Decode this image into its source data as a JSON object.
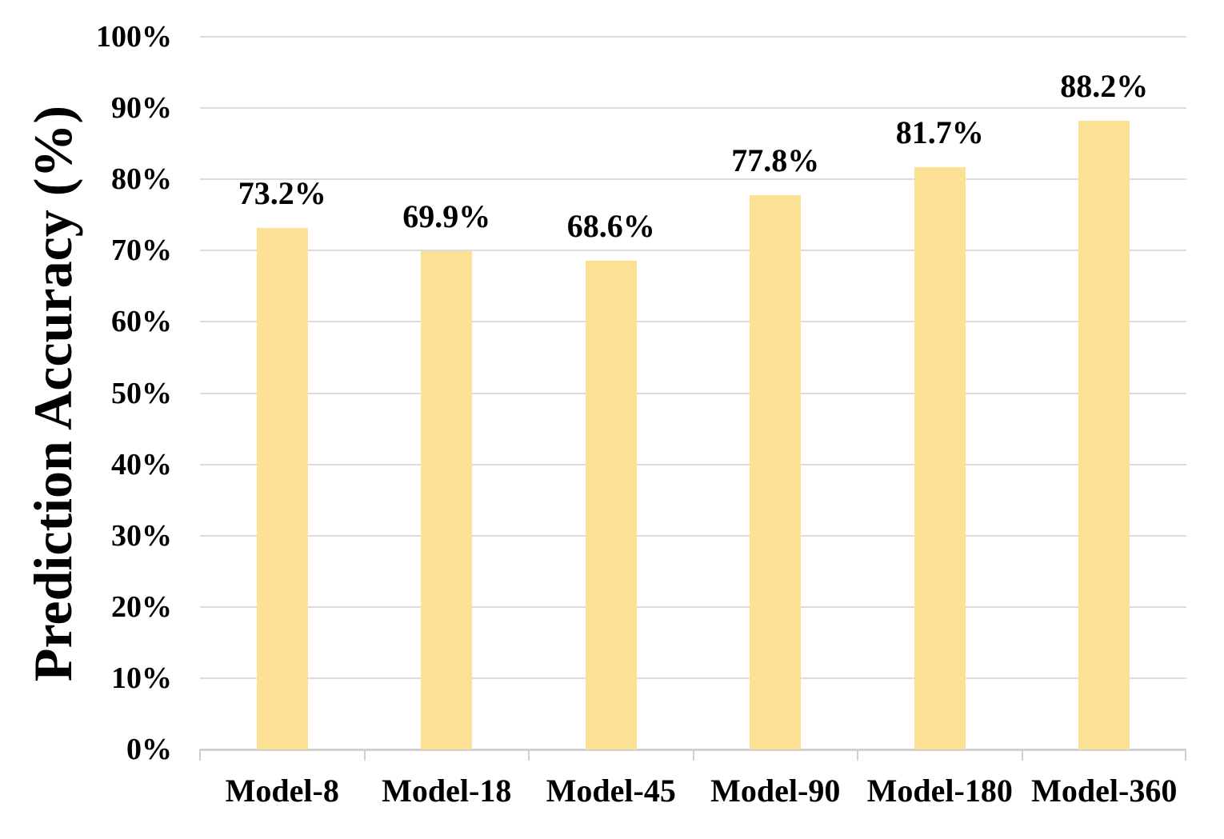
{
  "chart_data": {
    "type": "bar",
    "title": "",
    "xlabel": "",
    "ylabel": "Prediction Accuracy (%)",
    "categories": [
      "Model-8",
      "Model-18",
      "Model-45",
      "Model-90",
      "Model-180",
      "Model-360"
    ],
    "values": [
      73.2,
      69.9,
      68.6,
      77.8,
      81.7,
      88.2
    ],
    "data_labels": [
      "73.2%",
      "69.9%",
      "68.6%",
      "77.8%",
      "81.7%",
      "88.2%"
    ],
    "ylim": [
      0,
      100
    ],
    "ytick_values": [
      0,
      10,
      20,
      30,
      40,
      50,
      60,
      70,
      80,
      90,
      100
    ],
    "ytick_labels": [
      "0%",
      "10%",
      "20%",
      "30%",
      "40%",
      "50%",
      "60%",
      "70%",
      "80%",
      "90%",
      "100%"
    ],
    "grid": true,
    "legend": "none",
    "colors": {
      "bar_fill": "#FCE194",
      "gridline": "#DCDCDC",
      "axis_line": "#D0D0D0",
      "text": "#000000",
      "background": "#FFFFFF"
    }
  }
}
